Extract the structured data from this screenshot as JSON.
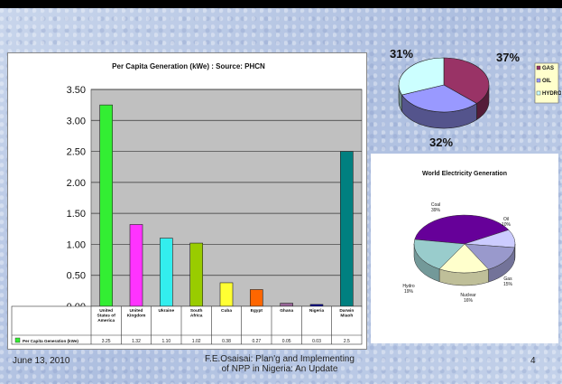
{
  "chart_data": [
    {
      "type": "bar",
      "title": "Per Capita Generation (kWe) : Source: PHCN",
      "categories": [
        "United States of America",
        "United Kingdom",
        "Ukraine",
        "South Africa",
        "Cuba",
        "Egypt",
        "Ghana",
        "Nigeria",
        "Darwin Miaoh"
      ],
      "series": [
        {
          "name": "Per Capita Generation (kWe)",
          "values": [
            3.25,
            1.32,
            1.1,
            1.02,
            0.38,
            0.27,
            0.05,
            0.03,
            2.5
          ]
        }
      ],
      "value_labels": [
        "3.25",
        "1.32",
        "1.10",
        "1.02",
        "0.38",
        "0.27",
        "0.05",
        "0.03",
        "2.5"
      ],
      "bar_colors": [
        "#33ee33",
        "#ff33ff",
        "#33eeee",
        "#99cc00",
        "#ffff33",
        "#ff6600",
        "#996699",
        "#000099",
        "#008080"
      ],
      "yticks": [
        "0.00",
        "0.50",
        "1.00",
        "1.50",
        "2.00",
        "2.50",
        "3.00",
        "3.50"
      ],
      "ylim": [
        0,
        3.5
      ],
      "grid": true,
      "legend": "table-bottom"
    },
    {
      "type": "pie",
      "labels": [
        "GAS",
        "OIL",
        "HYDRO"
      ],
      "values": [
        37,
        32,
        31
      ],
      "value_labels": [
        "37%",
        "32%",
        "31%"
      ],
      "colors": [
        "#993366",
        "#9999ff",
        "#ccffff"
      ],
      "legend": "right"
    },
    {
      "type": "pie",
      "title": "World Electricity Generation",
      "labels": [
        "Coal",
        "Oil",
        "Gas",
        "Nuclear",
        "Hydro"
      ],
      "values": [
        39,
        10,
        15,
        16,
        19
      ],
      "value_labels": [
        "39%",
        "10%",
        "15%",
        "16%",
        "19%"
      ],
      "colors": [
        "#660099",
        "#ccccff",
        "#9999cc",
        "#ffffcc",
        "#99cccc"
      ],
      "legend": "none"
    }
  ],
  "footer": {
    "date": "June 13, 2010",
    "author_line1": "F.E.Osaisai: Plan'g and Implementing",
    "author_line2": "of NPP in Nigeria: An Update",
    "page": "4"
  }
}
